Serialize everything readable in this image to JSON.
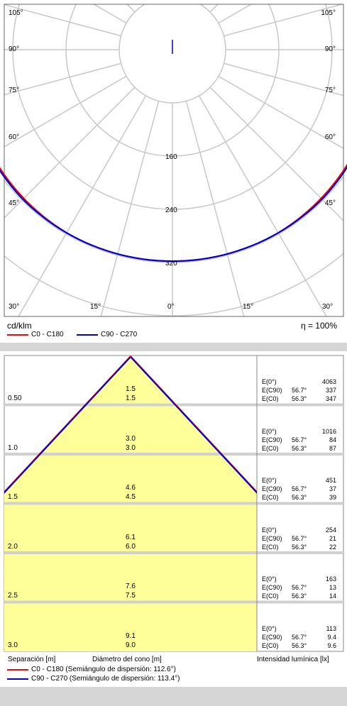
{
  "polar": {
    "unit_label": "cd/klm",
    "efficiency_label": "η = 100%",
    "radial_ticks": [
      "160",
      "240",
      "320"
    ],
    "angle_labels": {
      "left": [
        "105°",
        "90°",
        "75°",
        "60°",
        "45°"
      ],
      "right": [
        "105°",
        "90°",
        "75°",
        "60°",
        "45°"
      ],
      "bottom": [
        "30°",
        "15°",
        "0°",
        "15°",
        "30°"
      ]
    },
    "legend": [
      "C0 - C180",
      "C90 - C270"
    ]
  },
  "chart_data": [
    {
      "type": "polar",
      "unit": "cd/klm",
      "radial_ticks": [
        160,
        240,
        320
      ],
      "rmax": 400,
      "series": [
        {
          "name": "C0 - C180",
          "color": "#ff0000",
          "angles": [
            0,
            15,
            30,
            45,
            60,
            75,
            90
          ],
          "values": [
            318,
            318,
            318,
            316,
            314,
            305,
            285
          ]
        },
        {
          "name": "C90 - C270",
          "color": "#0000cc",
          "angles": [
            0,
            15,
            30,
            45,
            60,
            75,
            90
          ],
          "values": [
            318,
            318,
            318,
            318,
            316,
            308,
            290
          ]
        }
      ]
    },
    {
      "type": "table",
      "title": "Diámetro del cono",
      "columns": [
        "Separación [m]",
        "Diámetro del cono [m] C0",
        "Diámetro del cono [m] C90",
        "E(0°)",
        "E(C90) angle",
        "E(C90)",
        "E(C0) angle",
        "E(C0)"
      ],
      "rows": [
        {
          "sep": "0.50",
          "d1": "1.5",
          "d2": "1.5",
          "e0": "4063",
          "ec90": "337",
          "ec0": "347"
        },
        {
          "sep": "1.0",
          "d1": "3.0",
          "d2": "3.0",
          "e0": "1016",
          "ec90": "84",
          "ec0": "87"
        },
        {
          "sep": "1.5",
          "d1": "4.6",
          "d2": "4.5",
          "e0": "451",
          "ec90": "37",
          "ec0": "39"
        },
        {
          "sep": "2.0",
          "d1": "6.1",
          "d2": "6.0",
          "e0": "254",
          "ec90": "21",
          "ec0": "22"
        },
        {
          "sep": "2.5",
          "d1": "7.6",
          "d2": "7.5",
          "e0": "163",
          "ec90": "13",
          "ec0": "14"
        },
        {
          "sep": "3.0",
          "d1": "9.1",
          "d2": "9.0",
          "e0": "113",
          "ec90": "9.4",
          "ec0": "9.6"
        }
      ]
    }
  ],
  "cone": {
    "e0_label": "E(0°)",
    "ec90_label": "E(C90)",
    "ec0_label": "E(C0)",
    "c90_angle": "56.7°",
    "c0_angle": "56.3°",
    "footer": {
      "separation": "Separación [m]",
      "diameter": "Diámetro del cono [m]",
      "illuminance": "Intensidad lumínica [lx]",
      "legend_c0": "C0 - C180 (Semiángulo de dispersión: 112.6°)",
      "legend_c90": "C90 - C270 (Semiángulo de dispersión: 113.4°)"
    }
  },
  "colors": {
    "c0": "#ff0000",
    "c90": "#0000cc",
    "cone_fill": "#ffff99",
    "grid": "#c8c8c8"
  }
}
